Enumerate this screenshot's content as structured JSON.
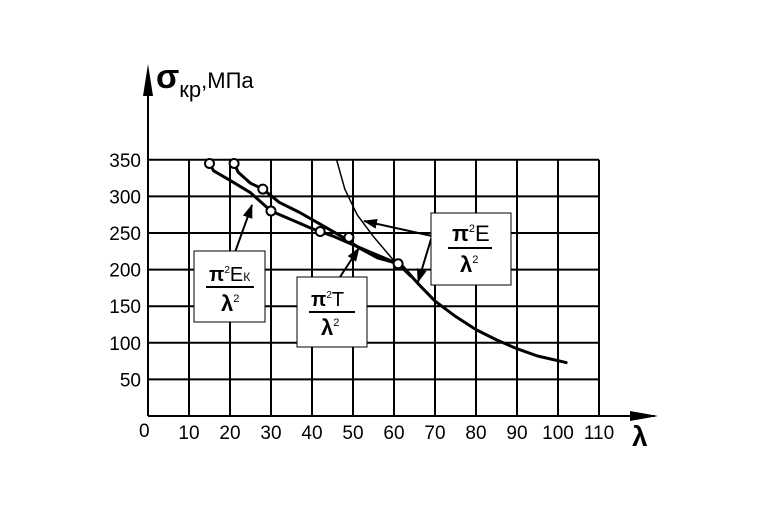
{
  "chart_data": {
    "type": "line",
    "xlabel": "λ",
    "ylabel_symbol": "σ",
    "ylabel_subscript": "кр",
    "ylabel_unit": ",МПа",
    "origin_label": "0",
    "xlim": [
      0,
      110
    ],
    "ylim": [
      0,
      350
    ],
    "x_ticks": [
      10,
      20,
      30,
      40,
      50,
      60,
      70,
      80,
      90,
      100,
      110
    ],
    "x_tick_labels": [
      "10",
      "20",
      "30",
      "40",
      "50",
      "60",
      "70",
      "80",
      "90",
      "100",
      "110"
    ],
    "y_ticks": [
      50,
      100,
      150,
      200,
      250,
      300,
      350
    ],
    "y_tick_labels": [
      "50",
      "100",
      "150",
      "200",
      "250",
      "300",
      "350"
    ],
    "grid": true,
    "series": [
      {
        "id": "euler-thin",
        "points": [
          [
            46,
            350
          ],
          [
            48,
            310
          ],
          [
            51,
            275
          ],
          [
            55,
            245
          ],
          [
            60,
            212
          ],
          [
            64,
            190
          ]
        ]
      },
      {
        "id": "euler-thick",
        "points": [
          [
            62,
            205
          ],
          [
            66,
            180
          ],
          [
            70,
            157
          ],
          [
            75,
            136
          ],
          [
            80,
            118
          ],
          [
            85,
            104
          ],
          [
            90,
            92
          ],
          [
            95,
            82
          ],
          [
            102,
            73
          ]
        ]
      },
      {
        "id": "inelastic-lower",
        "points": [
          [
            15,
            345
          ],
          [
            16,
            335
          ],
          [
            20,
            322
          ],
          [
            25,
            305
          ],
          [
            30,
            280
          ],
          [
            35,
            268
          ],
          [
            40,
            256
          ],
          [
            45,
            246
          ],
          [
            50,
            234
          ],
          [
            55,
            222
          ],
          [
            61,
            208
          ]
        ],
        "markers": [
          [
            15,
            345
          ],
          [
            30,
            280
          ],
          [
            49,
            244
          ],
          [
            61,
            208
          ]
        ]
      },
      {
        "id": "inelastic-upper",
        "points": [
          [
            21,
            345
          ],
          [
            22,
            333
          ],
          [
            25,
            318
          ],
          [
            28,
            310
          ],
          [
            32,
            292
          ],
          [
            37,
            278
          ],
          [
            42,
            262
          ],
          [
            47,
            246
          ],
          [
            52,
            228
          ],
          [
            56,
            216
          ],
          [
            61,
            208
          ]
        ],
        "markers": [
          [
            21,
            345
          ],
          [
            28,
            310
          ],
          [
            42,
            252
          ]
        ]
      }
    ],
    "annotations": [
      {
        "id": "formula-euler",
        "numerator": "π²E",
        "numerator_main": "π",
        "numerator_sup": "2",
        "numerator_tail": "E",
        "denominator_main": "λ",
        "denominator_sup": "2"
      },
      {
        "id": "formula-ek",
        "numerator": "π²Eк",
        "numerator_main": "π",
        "numerator_sup": "2",
        "numerator_tail": "E",
        "numerator_sub": "К",
        "denominator_main": "λ",
        "denominator_sup": "2"
      },
      {
        "id": "formula-t",
        "numerator": "π²T",
        "numerator_main": "π",
        "numerator_sup": "2",
        "numerator_tail": "T",
        "denominator_main": "λ",
        "denominator_sup": "2"
      }
    ]
  }
}
